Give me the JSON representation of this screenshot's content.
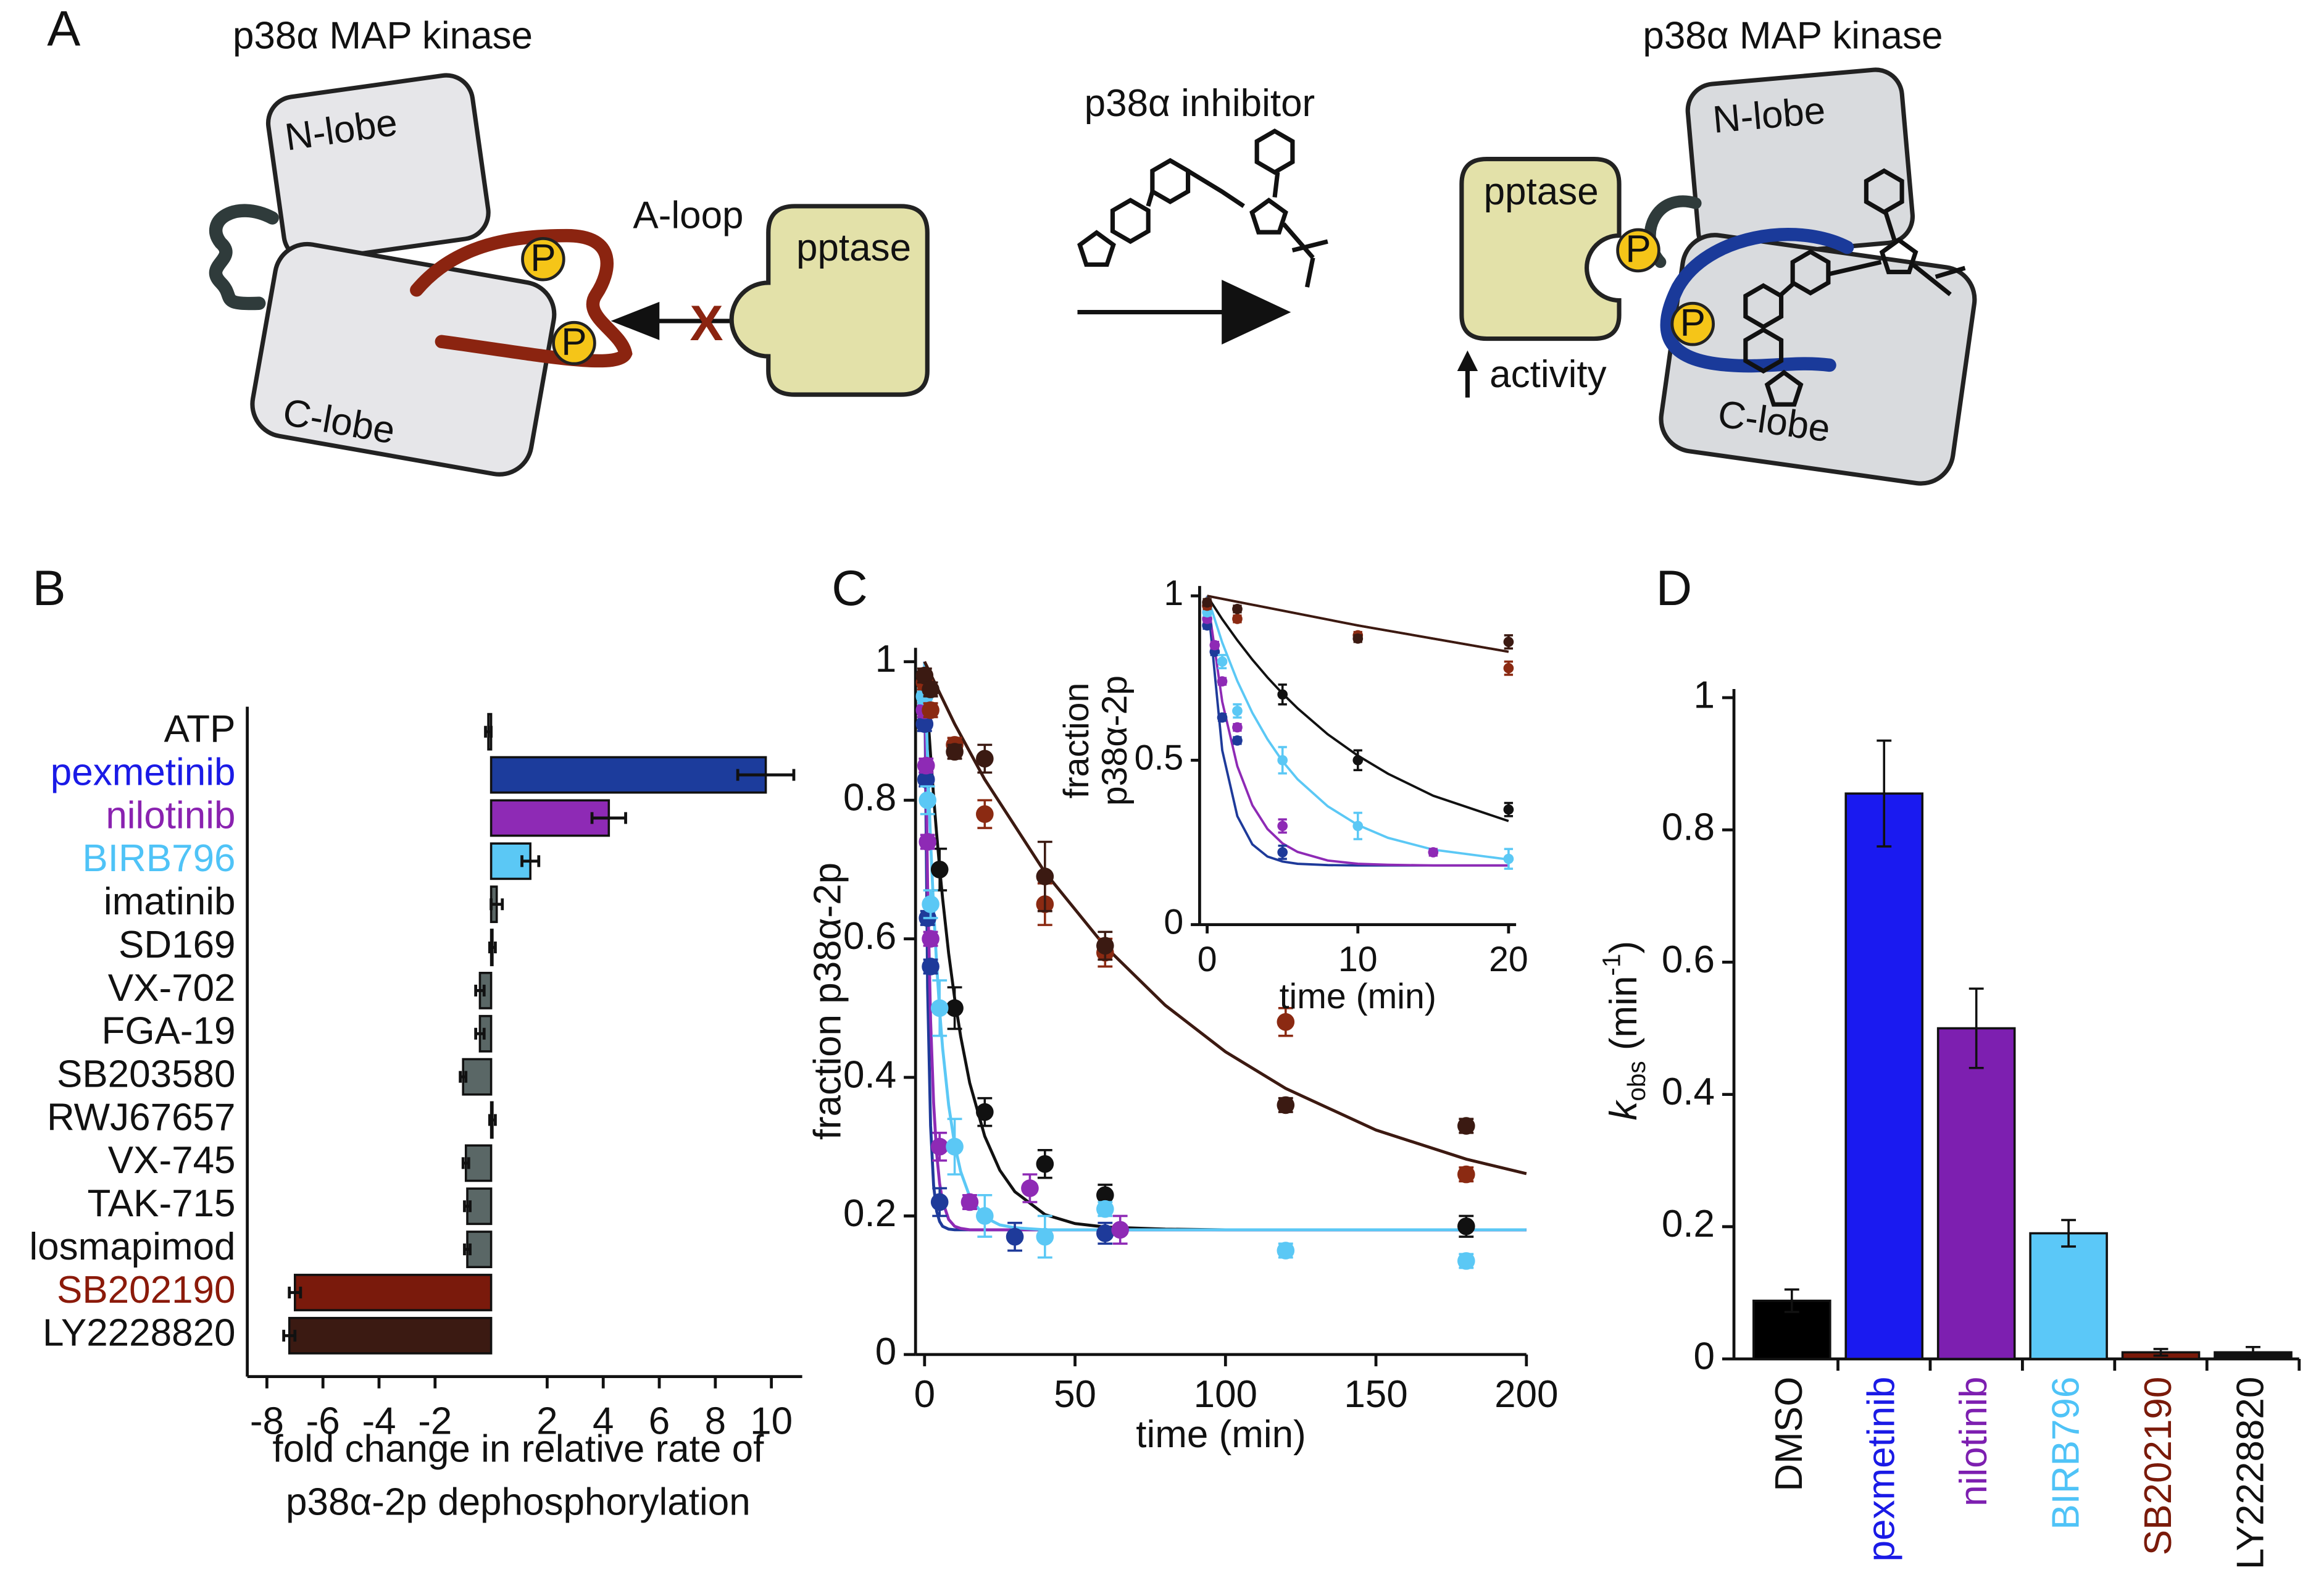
{
  "panel_labels": [
    "A",
    "B",
    "C",
    "D"
  ],
  "diagram": {
    "left": {
      "title": "p38α MAP kinase",
      "n_lobe": "N-lobe",
      "c_lobe": "C-lobe",
      "a_loop": "A-loop",
      "phospho": [
        "P",
        "P"
      ],
      "phosphatase": "pptase",
      "block": "X"
    },
    "middle": {
      "label": "p38α inhibitor"
    },
    "right": {
      "title": "p38α MAP kinase",
      "n_lobe": "N-lobe",
      "c_lobe": "C-lobe",
      "phosphatase": "pptase",
      "phospho": [
        "P",
        "P"
      ],
      "activity": "activity"
    }
  },
  "chart_data": [
    {
      "type": "hbar",
      "categories": [
        "ATP",
        "pexmetinib",
        "nilotinib",
        "BIRB796",
        "imatinib",
        "SD169",
        "VX-702",
        "FGA-19",
        "SB203580",
        "RWJ67657",
        "VX-745",
        "TAK-715",
        "losmapimod",
        "SB202190",
        "LY2228820"
      ],
      "values": [
        -0.1,
        9.8,
        4.2,
        1.4,
        0.2,
        0.05,
        -0.4,
        -0.4,
        -1.0,
        0.05,
        -0.9,
        -0.85,
        -0.85,
        -7.0,
        -7.2
      ],
      "errors": [
        0.1,
        1.0,
        0.6,
        0.3,
        0.2,
        0.1,
        0.15,
        0.15,
        0.1,
        0.1,
        0.1,
        0.1,
        0.1,
        0.2,
        0.2
      ],
      "colors": [
        "#555555",
        "#1c3c9c",
        "#8e2ab5",
        "#5bc8f5",
        "#5a6766",
        "#5a6766",
        "#5a6766",
        "#5a6766",
        "#5a6766",
        "#5a6766",
        "#5a6766",
        "#5a6766",
        "#5a6766",
        "#7a1a0c",
        "#3b1a12"
      ],
      "category_colors": [
        "#111111",
        "#1a1ae6",
        "#8a22b0",
        "#4fc3f7",
        "#111111",
        "#111111",
        "#111111",
        "#111111",
        "#111111",
        "#111111",
        "#111111",
        "#111111",
        "#111111",
        "#8b1a0a",
        "#111111"
      ],
      "xlim": [
        -8.7,
        11.1
      ],
      "xticks": [
        -8,
        -6,
        -4,
        -2,
        2,
        4,
        6,
        8,
        10
      ],
      "xlabel": [
        "fold change in relative rate of",
        "p38α-2p dephosphorylation"
      ]
    },
    {
      "type": "scatter",
      "ylabel": "fraction p38α-2p",
      "xlabel": "time (min)",
      "xlim": [
        -3,
        200
      ],
      "ylim": [
        0,
        1.02
      ],
      "xticks": [
        0,
        50,
        100,
        150,
        200
      ],
      "yticks": [
        0,
        0.2,
        0.4,
        0.6,
        0.8,
        1
      ],
      "series": [
        {
          "color": "#111111",
          "x": [
            0,
            5,
            10,
            20,
            40,
            60,
            180
          ],
          "values": [
            0.97,
            0.7,
            0.5,
            0.35,
            0.275,
            0.23,
            0.185
          ],
          "errors": [
            0.01,
            0.03,
            0.03,
            0.02,
            0.02,
            0.015,
            0.015
          ],
          "fit_x": [
            0,
            1,
            2,
            3,
            4,
            5,
            6,
            8,
            10,
            12,
            15,
            20,
            25,
            30,
            40,
            50,
            60,
            80,
            100,
            150,
            200
          ],
          "fit_values": [
            1,
            0.929,
            0.865,
            0.806,
            0.752,
            0.703,
            0.658,
            0.579,
            0.514,
            0.459,
            0.392,
            0.315,
            0.266,
            0.235,
            0.202,
            0.189,
            0.184,
            0.181,
            0.18,
            0.18,
            0.18
          ]
        },
        {
          "color": "#1e3a9a",
          "x": [
            0,
            0.5,
            1,
            2,
            5,
            30,
            60
          ],
          "values": [
            0.91,
            0.83,
            0.63,
            0.56,
            0.22,
            0.17,
            0.175
          ],
          "errors": [
            0.01,
            0.01,
            0.01,
            0.01,
            0.02,
            0.02,
            0.015
          ],
          "fit_x": [
            0,
            1,
            2,
            3,
            4,
            5,
            6,
            8,
            10,
            12,
            15,
            20,
            25,
            30,
            40,
            50,
            60,
            80,
            100,
            150,
            200
          ],
          "fit_values": [
            1,
            0.53,
            0.33,
            0.244,
            0.207,
            0.192,
            0.185,
            0.181,
            0.18,
            0.18,
            0.18,
            0.18,
            0.18,
            0.18,
            0.18,
            0.18,
            0.18,
            0.18,
            0.18,
            0.18,
            0.18
          ]
        },
        {
          "color": "#8e2ab5",
          "x": [
            0,
            0.5,
            1,
            2,
            5,
            15,
            35,
            65
          ],
          "values": [
            0.93,
            0.85,
            0.74,
            0.6,
            0.3,
            0.22,
            0.24,
            0.18
          ],
          "errors": [
            0.01,
            0.01,
            0.01,
            0.01,
            0.02,
            0.01,
            0.02,
            0.02
          ],
          "fit_x": [
            0,
            1,
            2,
            3,
            4,
            5,
            6,
            8,
            10,
            12,
            15,
            20,
            25,
            30,
            40,
            50,
            60,
            80,
            100,
            150,
            200
          ],
          "fit_values": [
            1,
            0.678,
            0.482,
            0.363,
            0.291,
            0.247,
            0.221,
            0.195,
            0.185,
            0.182,
            0.18,
            0.18,
            0.18,
            0.18,
            0.18,
            0.18,
            0.18,
            0.18,
            0.18,
            0.18,
            0.18
          ]
        },
        {
          "color": "#5bc8f5",
          "x": [
            0,
            1,
            2,
            5,
            10,
            20,
            40,
            60,
            120,
            180
          ],
          "values": [
            0.95,
            0.8,
            0.65,
            0.5,
            0.3,
            0.2,
            0.17,
            0.21,
            0.15,
            0.135
          ],
          "errors": [
            0.01,
            0.02,
            0.02,
            0.04,
            0.04,
            0.03,
            0.03,
            0.01,
            0.01,
            0.01
          ],
          "fit_x": [
            0,
            1,
            2,
            3,
            4,
            5,
            6,
            8,
            10,
            12,
            15,
            20,
            25,
            30,
            40,
            50,
            60,
            80,
            100,
            150,
            200
          ],
          "fit_values": [
            1,
            0.858,
            0.741,
            0.644,
            0.564,
            0.497,
            0.442,
            0.36,
            0.303,
            0.264,
            0.228,
            0.198,
            0.187,
            0.183,
            0.18,
            0.18,
            0.18,
            0.18,
            0.18,
            0.18,
            0.18
          ]
        },
        {
          "color": "#8b2a12",
          "x": [
            0,
            2,
            10,
            20,
            40,
            60,
            120,
            180
          ],
          "values": [
            0.97,
            0.93,
            0.88,
            0.78,
            0.65,
            0.58,
            0.48,
            0.26
          ],
          "errors": [
            0.01,
            0.01,
            0.01,
            0.02,
            0.03,
            0.02,
            0.02,
            0.01
          ],
          "fit_x": [
            0,
            10,
            20,
            40,
            60,
            80,
            100,
            120,
            150,
            180,
            200
          ],
          "fit_values": [
            1,
            0.91,
            0.83,
            0.696,
            0.589,
            0.504,
            0.437,
            0.384,
            0.324,
            0.282,
            0.261
          ]
        },
        {
          "color": "#3b1a12",
          "x": [
            0,
            2,
            10,
            20,
            40,
            60,
            120,
            180
          ],
          "values": [
            0.98,
            0.96,
            0.87,
            0.86,
            0.69,
            0.59,
            0.36,
            0.33
          ],
          "errors": [
            0.01,
            0.01,
            0.01,
            0.02,
            0.05,
            0.02,
            0.01,
            0.01
          ],
          "fit_x": [
            0,
            10,
            20,
            40,
            60,
            80,
            100,
            120,
            150,
            180,
            200
          ],
          "fit_values": [
            1,
            0.91,
            0.83,
            0.696,
            0.589,
            0.504,
            0.437,
            0.384,
            0.324,
            0.282,
            0.261
          ]
        }
      ]
    },
    {
      "type": "scatter",
      "ylabel": [
        "fraction",
        "p38α-2p"
      ],
      "xlabel": "time (min)",
      "xlim": [
        -0.5,
        20.5
      ],
      "ylim": [
        0,
        1.03
      ],
      "xticks": [
        0,
        10,
        20
      ],
      "yticks": [
        0,
        0.5,
        1
      ]
    },
    {
      "type": "bar",
      "categories": [
        "DMSO",
        "pexmetinib",
        "nilotinib",
        "BIRB796",
        "SB202190",
        "LY2228820"
      ],
      "values": [
        0.088,
        0.855,
        0.5,
        0.19,
        0.01,
        0.01
      ],
      "errors": [
        0.017,
        0.08,
        0.06,
        0.02,
        0.005,
        0.008
      ],
      "colors": [
        "#000000",
        "#1a1af0",
        "#7d1fb0",
        "#5bc8f8",
        "#7a1a0a",
        "#111111"
      ],
      "category_colors": [
        "#111111",
        "#1a1ae6",
        "#7d1fb0",
        "#4fc3f7",
        "#7a1a0a",
        "#111111"
      ],
      "ylim": [
        0,
        1.013
      ],
      "yticks": [
        0,
        0.2,
        0.4,
        0.6,
        0.8,
        1
      ],
      "ylabel": [
        "k",
        "obs",
        " (min",
        "-1",
        ")"
      ]
    }
  ]
}
